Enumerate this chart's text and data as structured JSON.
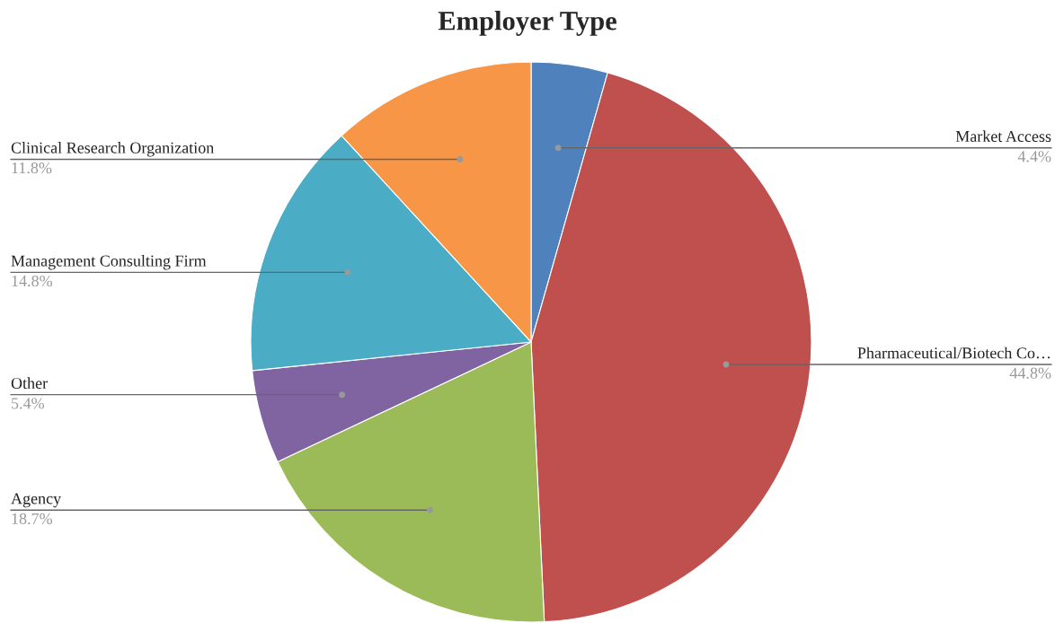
{
  "chart_data": {
    "type": "pie",
    "title": "Employer Type",
    "categories": [
      "Market Access",
      "Pharmaceutical/Biotech Co…",
      "Agency",
      "Other",
      "Management Consulting Firm",
      "Clinical Research Organization"
    ],
    "values": [
      4.4,
      44.8,
      18.7,
      5.4,
      14.8,
      11.8
    ],
    "colors": [
      "#4f81bd",
      "#c0504d",
      "#9bbb59",
      "#8064a2",
      "#4bacc6",
      "#f79646"
    ],
    "value_labels": [
      "4.4%",
      "44.8%",
      "18.7%",
      "5.4%",
      "14.8%",
      "11.8%"
    ]
  }
}
